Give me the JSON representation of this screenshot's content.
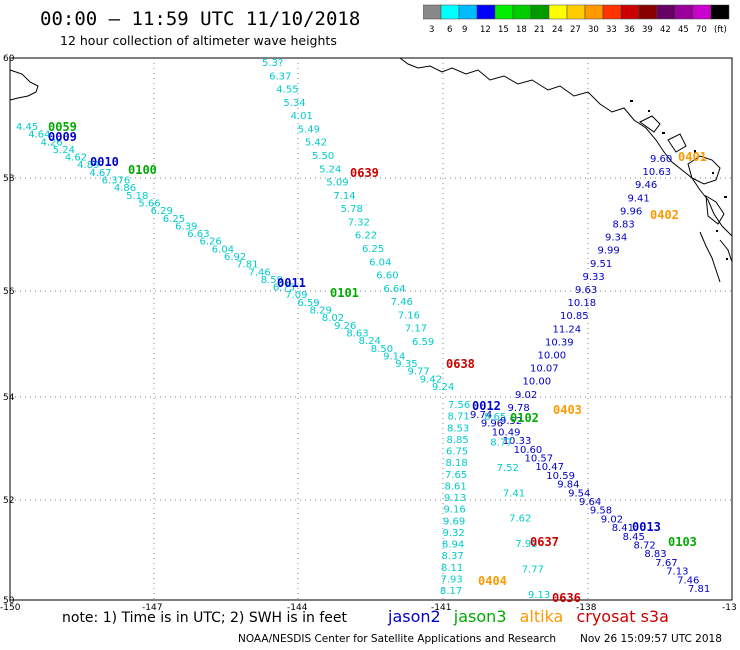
{
  "header": {
    "title": "00:00 – 11:59 UTC 11/10/2018",
    "subtitle": "12 hour collection of altimeter wave heights"
  },
  "colorbar": {
    "colors": [
      "#888888",
      "#00ffff",
      "#00bbff",
      "#0000ff",
      "#00ee00",
      "#00cc00",
      "#009900",
      "#ffff00",
      "#ffcc00",
      "#ff9900",
      "#ff3300",
      "#cc0000",
      "#880000",
      "#660066",
      "#990099",
      "#cc00cc",
      "#000000"
    ],
    "labels": [
      "3",
      "6",
      "9",
      "12",
      "15",
      "18",
      "21",
      "24",
      "27",
      "30",
      "33",
      "36",
      "39",
      "42",
      "45",
      "70",
      "(ft)"
    ]
  },
  "map": {
    "lat_labels": [
      "60",
      "58",
      "56",
      "54",
      "52",
      "50"
    ],
    "lon_labels": [
      "-150",
      "-147",
      "-144",
      "-141",
      "-138",
      "-13"
    ],
    "colors": {
      "jason2": "#0000cc",
      "jason3": "#00aa00",
      "altika": "#ff9900",
      "cryosat": "#cc0000",
      "track": "#00cccc",
      "coast": "#000000"
    },
    "pass_labels": [
      {
        "text": "0059",
        "sat": "jason3"
      },
      {
        "text": "0009",
        "sat": "jason2"
      },
      {
        "text": "0010",
        "sat": "jason2"
      },
      {
        "text": "0100",
        "sat": "jason3"
      },
      {
        "text": "0639",
        "sat": "cryosat"
      },
      {
        "text": "0401",
        "sat": "altika"
      },
      {
        "text": "0402",
        "sat": "altika"
      },
      {
        "text": "0011",
        "sat": "jason2"
      },
      {
        "text": "0101",
        "sat": "jason3"
      },
      {
        "text": "0638",
        "sat": "cryosat"
      },
      {
        "text": "0012",
        "sat": "jason2"
      },
      {
        "text": "0102",
        "sat": "jason3"
      },
      {
        "text": "0403",
        "sat": "altika"
      },
      {
        "text": "0637",
        "sat": "cryosat"
      },
      {
        "text": "0013",
        "sat": "jason2"
      },
      {
        "text": "0103",
        "sat": "jason3"
      },
      {
        "text": "0404",
        "sat": "altika"
      },
      {
        "text": "0636",
        "sat": "cryosat"
      }
    ],
    "track_values": {
      "north_track": [
        "5.3?",
        "6.37",
        "4.55",
        "5.34",
        "4.01",
        "5.49",
        "5.42",
        "5.50",
        "5.24",
        "5.09",
        "7.14",
        "5.78",
        "7.32",
        "6.22",
        "6.25",
        "6.04",
        "6.60",
        "6.64",
        "7.46",
        "7.16",
        "7.17",
        "6.59"
      ],
      "west_track": [
        "4.45",
        "4.64",
        "4.26",
        "5.24",
        "4.62",
        "4.89",
        "4.67",
        "6.376",
        "4.86",
        "5.18",
        "5.66",
        "6.29",
        "6.25",
        "6.39",
        "6.63",
        "6.26",
        "6.04",
        "6.92",
        "7.81",
        "7.46",
        "8.59",
        "6.75",
        "7.09",
        "6.59",
        "8.29",
        "8.02",
        "9.26",
        "8.63",
        "8.24",
        "8.50",
        "9.14",
        "9.35",
        "9.77",
        "9.42",
        "9.24"
      ],
      "mid_track": [
        "9.74",
        "9.96",
        "10.49",
        "10.33",
        "10.60",
        "10.57",
        "10.47",
        "10.59",
        "9.84",
        "9.54",
        "9.64",
        "9.58",
        "9.02",
        "8.41",
        "8.45",
        "8.72",
        "8.83",
        "7.67",
        "7.13",
        "7.46",
        "7.81"
      ],
      "south_track": [
        "7.56",
        "8.71",
        "8.53",
        "8.85",
        "6.75",
        "8.18",
        "7.65",
        "8.61",
        "9.13",
        "9.16",
        "9.69",
        "9.32",
        "8.94",
        "8.37",
        "8.11",
        "7.93",
        "8.17"
      ],
      "alt_track": [
        "8.65",
        "8.77",
        "7.52",
        "7.41",
        "7.62",
        "7.93",
        "7.77",
        "9.13"
      ],
      "jason2_north_track": [
        "9.60",
        "10.63",
        "9.46",
        "9.41",
        "9.96",
        "8.83",
        "9.34",
        "9.99",
        "9.51",
        "9.33",
        "9.63",
        "10.18",
        "10.85",
        "11.24",
        "10.39",
        "10.00",
        "10.07",
        "10.00",
        "9.02",
        "9.78",
        "9.52"
      ]
    }
  },
  "footer": {
    "note": "note:  1) Time is in UTC;  2) SWH is in feet",
    "legend": [
      {
        "text": "jason2",
        "sat": "jason2"
      },
      {
        "text": "jason3",
        "sat": "jason3"
      },
      {
        "text": "altika",
        "sat": "altika"
      },
      {
        "text": "cryosat s3a",
        "sat": "cryosat"
      }
    ],
    "credit": "NOAA/NESDIS Center for Satellite Applications and Research",
    "timestamp": "Nov 26 15:09:57 UTC 2018"
  }
}
